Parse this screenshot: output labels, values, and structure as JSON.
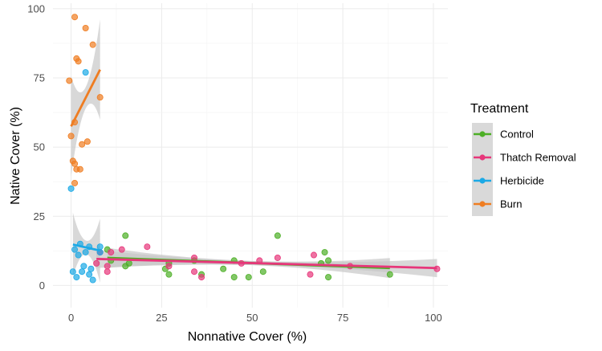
{
  "chart_data": {
    "type": "scatter",
    "xlabel": "Nonnative Cover (%)",
    "ylabel": "Native Cover (%)",
    "xlim": [
      -5,
      104
    ],
    "ylim": [
      -8,
      102
    ],
    "x_ticks": [
      "0",
      "25",
      "50",
      "75",
      "100"
    ],
    "x_tick_values": [
      0,
      25,
      50,
      75,
      100
    ],
    "y_ticks": [
      "0",
      "25",
      "50",
      "75",
      "100"
    ],
    "y_tick_values": [
      0,
      25,
      50,
      75,
      100
    ],
    "grid": true,
    "legend": {
      "title": "Treatment",
      "position": "right"
    },
    "series": [
      {
        "name": "Control",
        "color": "#4daf26",
        "points": [
          [
            10,
            13
          ],
          [
            11,
            9
          ],
          [
            15,
            18
          ],
          [
            15,
            7
          ],
          [
            16,
            8
          ],
          [
            26,
            6
          ],
          [
            27,
            4
          ],
          [
            27,
            8
          ],
          [
            34,
            9
          ],
          [
            36,
            4
          ],
          [
            42,
            6
          ],
          [
            45,
            3
          ],
          [
            45,
            9
          ],
          [
            49,
            3
          ],
          [
            53,
            5
          ],
          [
            57,
            18
          ],
          [
            69,
            8
          ],
          [
            70,
            12
          ],
          [
            71,
            3
          ],
          [
            71,
            9
          ],
          [
            88,
            4
          ]
        ],
        "fit": {
          "x": [
            10,
            88
          ],
          "y": [
            10.0,
            6.3
          ]
        }
      },
      {
        "name": "Thatch Removal",
        "color": "#e7367a",
        "points": [
          [
            7,
            8
          ],
          [
            8,
            12
          ],
          [
            10,
            5
          ],
          [
            10,
            7
          ],
          [
            11,
            12
          ],
          [
            14,
            13
          ],
          [
            21,
            14
          ],
          [
            27,
            7
          ],
          [
            34,
            10
          ],
          [
            34,
            5
          ],
          [
            36,
            3
          ],
          [
            47,
            8
          ],
          [
            52,
            9
          ],
          [
            57,
            10
          ],
          [
            66,
            4
          ],
          [
            67,
            11
          ],
          [
            77,
            7
          ],
          [
            101,
            6
          ]
        ],
        "fit": {
          "x": [
            7,
            101
          ],
          "y": [
            9.6,
            6.3
          ]
        }
      },
      {
        "name": "Herbicide",
        "color": "#1ba9e6",
        "points": [
          [
            0,
            35
          ],
          [
            0.5,
            5
          ],
          [
            1,
            13
          ],
          [
            1.5,
            3
          ],
          [
            2,
            11
          ],
          [
            2.5,
            15
          ],
          [
            3,
            5
          ],
          [
            3.5,
            7
          ],
          [
            4,
            77
          ],
          [
            4,
            12
          ],
          [
            5,
            14
          ],
          [
            5,
            4
          ],
          [
            5.5,
            6
          ],
          [
            6,
            2
          ],
          [
            8,
            14
          ],
          [
            8,
            12
          ]
        ],
        "fit": {
          "x": [
            0.5,
            8
          ],
          "y": [
            14.8,
            12.6
          ]
        }
      },
      {
        "name": "Burn",
        "color": "#ef7d22",
        "points": [
          [
            -0.5,
            74
          ],
          [
            0,
            54
          ],
          [
            0.5,
            45
          ],
          [
            1,
            44
          ],
          [
            1,
            59
          ],
          [
            1,
            37
          ],
          [
            1,
            97
          ],
          [
            1.5,
            42
          ],
          [
            1.5,
            82
          ],
          [
            2,
            81
          ],
          [
            2.5,
            42
          ],
          [
            3,
            51
          ],
          [
            4,
            93
          ],
          [
            4.5,
            52
          ],
          [
            6,
            87
          ],
          [
            8,
            68
          ]
        ],
        "fit": {
          "x": [
            0,
            8
          ],
          "y": [
            57.5,
            78
          ]
        }
      }
    ]
  }
}
